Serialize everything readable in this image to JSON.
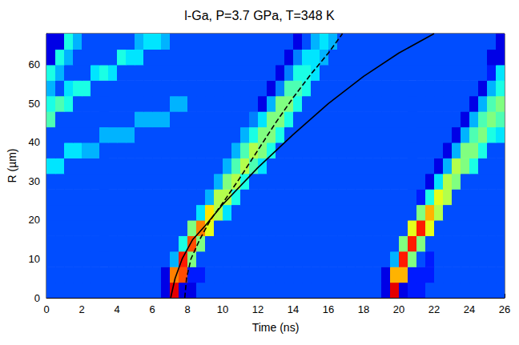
{
  "chart_data": {
    "type": "heatmap",
    "title": "l-Ga, P=3.7 GPa, T=348 K",
    "x_label": "Time (ns)",
    "y_label": "R (µm)",
    "xlim": [
      0,
      26
    ],
    "ylim": [
      0,
      68
    ],
    "xticks": [
      0,
      2,
      4,
      6,
      8,
      10,
      12,
      14,
      16,
      18,
      20,
      22,
      24,
      26
    ],
    "yticks": [
      0,
      10,
      20,
      30,
      40,
      50,
      60
    ],
    "grid": false,
    "x_bins": [
      0,
      0.5,
      1,
      1.5,
      2,
      2.5,
      3,
      3.5,
      4,
      4.5,
      5,
      5.5,
      6,
      6.5,
      7,
      7.5,
      8,
      8.5,
      9,
      9.5,
      10,
      10.5,
      11,
      11.5,
      12,
      12.5,
      13,
      13.5,
      14,
      14.5,
      15,
      15.5,
      16,
      16.5,
      17,
      17.5,
      18,
      18.5,
      19,
      19.5,
      20,
      20.5,
      21,
      21.5,
      22,
      22.5,
      23,
      23.5,
      24,
      24.5,
      25,
      25.5,
      26
    ],
    "y_bins": [
      0,
      4,
      8,
      12,
      16,
      20,
      24,
      28,
      32,
      36,
      40,
      44,
      48,
      52,
      56,
      60,
      64,
      68
    ],
    "color_range": [
      0,
      10
    ],
    "cells": [
      [
        2,
        2,
        2,
        2,
        2,
        2,
        2,
        2,
        2,
        2,
        2,
        2,
        2,
        1,
        9,
        1,
        1,
        2,
        2,
        2,
        2,
        2,
        2,
        2,
        2,
        2,
        2,
        2,
        2,
        2,
        2,
        2,
        2,
        2,
        2,
        2,
        2,
        2,
        1,
        9,
        1,
        1.5,
        1.5,
        2,
        2,
        2,
        2,
        2,
        2,
        2,
        2,
        2
      ],
      [
        2,
        2,
        2,
        2,
        2,
        2,
        2,
        2,
        2,
        2,
        2,
        2,
        2,
        1,
        7.5,
        8,
        1.5,
        1.5,
        2,
        2,
        2,
        2,
        2,
        2,
        2,
        2,
        2,
        2,
        2,
        2,
        2,
        2,
        2,
        2,
        2,
        2,
        2,
        2,
        1,
        7,
        7,
        1.5,
        1.5,
        1.5,
        2,
        2,
        2,
        2,
        2,
        2,
        2,
        2
      ],
      [
        2,
        2,
        2,
        2,
        2,
        2,
        2,
        2,
        2,
        2,
        2,
        2,
        2,
        2,
        3,
        8.5,
        5,
        2,
        2,
        2,
        2,
        2,
        2,
        2,
        2,
        2,
        2,
        2,
        2,
        2,
        2,
        2,
        2,
        2,
        2,
        2,
        2,
        2,
        2,
        3,
        8.5,
        5,
        2,
        1.5,
        2,
        2,
        2,
        2,
        2,
        2,
        2,
        2
      ],
      [
        2,
        2,
        2,
        2,
        2,
        2,
        2,
        2,
        2,
        2,
        2,
        2,
        2,
        2,
        2,
        4,
        8,
        5,
        2,
        2,
        2,
        2,
        2,
        2,
        2,
        2,
        2,
        2,
        2,
        2,
        2,
        2,
        2,
        2,
        2,
        2,
        2,
        2,
        2,
        2,
        5,
        8.5,
        5,
        2,
        2,
        2,
        2,
        2,
        2,
        2,
        2,
        2
      ],
      [
        2,
        2,
        2,
        2,
        2,
        2,
        2,
        2,
        2,
        2,
        2,
        2,
        2,
        2,
        2,
        2,
        5,
        7.5,
        6,
        2,
        2,
        2,
        2,
        2,
        2,
        2,
        2,
        2,
        2,
        2,
        2,
        2,
        2,
        2,
        2,
        2,
        2,
        2,
        2,
        2,
        2,
        6,
        8.5,
        6,
        2,
        2,
        2,
        2,
        2,
        2,
        2,
        2
      ],
      [
        2,
        2,
        2,
        2,
        2,
        2,
        2,
        2,
        2,
        2,
        2,
        2,
        2,
        2,
        2,
        2,
        2,
        3.5,
        6.5,
        5.5,
        3.5,
        2,
        2,
        2,
        2,
        2,
        2,
        2,
        2,
        2,
        2,
        2,
        2,
        2,
        2,
        2,
        2,
        2,
        2,
        2,
        2,
        2,
        5,
        7,
        5.5,
        2,
        2,
        2,
        2,
        2,
        2,
        2
      ],
      [
        2,
        2,
        2,
        2,
        2,
        2,
        2,
        2,
        2,
        2,
        2,
        2,
        2,
        2,
        2,
        2,
        2,
        2,
        3,
        5.5,
        5.5,
        4,
        2,
        2,
        2,
        2,
        2,
        2,
        2,
        2,
        2,
        2,
        2,
        2,
        2,
        2,
        2,
        2,
        2,
        2,
        2,
        2,
        1.5,
        4,
        6,
        5.5,
        2,
        2,
        2,
        2,
        2,
        2
      ],
      [
        2,
        2,
        2,
        2,
        2,
        2,
        2,
        2,
        2,
        2,
        2,
        2,
        2,
        2,
        2,
        2,
        2,
        2,
        2,
        3,
        5,
        5.5,
        4,
        2,
        2,
        2,
        2,
        2,
        2,
        2,
        2,
        2,
        2,
        2,
        2,
        2,
        2,
        2,
        2,
        2,
        2,
        2,
        2,
        1,
        3.5,
        5.5,
        5,
        2,
        2,
        2,
        2,
        2
      ],
      [
        3.5,
        3.5,
        2,
        2,
        2,
        2,
        2,
        2,
        2,
        2,
        2,
        2,
        2,
        2,
        2,
        2,
        2,
        2,
        2,
        2,
        3,
        4.5,
        5.5,
        4.5,
        3.5,
        2,
        2,
        2,
        2,
        2,
        2,
        2,
        2,
        2,
        2,
        2,
        2,
        2,
        2,
        2,
        2,
        2,
        2,
        2,
        1,
        3,
        5.5,
        5,
        4,
        2,
        2,
        2
      ],
      [
        2,
        2,
        3.5,
        3.5,
        3,
        3,
        2,
        2,
        2,
        2,
        2,
        2,
        2,
        2,
        2,
        2,
        2,
        2,
        2,
        2,
        2,
        3,
        4.5,
        5.5,
        5,
        4,
        2,
        2,
        2,
        2,
        2,
        2,
        2,
        2,
        2,
        2,
        2,
        2,
        2,
        2,
        2,
        2,
        2,
        2,
        2,
        1,
        3,
        5,
        5,
        4,
        2,
        2
      ],
      [
        2,
        2,
        2,
        2,
        2,
        2,
        3,
        3,
        3,
        3,
        2,
        2,
        2,
        2,
        2,
        2,
        2,
        2,
        2,
        2,
        2,
        2,
        3,
        4,
        5,
        5,
        4,
        2,
        2,
        2,
        2,
        2,
        2,
        2,
        2,
        2,
        2,
        2,
        2,
        2,
        2,
        2,
        2,
        2,
        2,
        2,
        1,
        3,
        4.5,
        5,
        4,
        3.5
      ],
      [
        4.5,
        2,
        2,
        2,
        2,
        2,
        2,
        2,
        2,
        2,
        3,
        3,
        3,
        3,
        2,
        2,
        2,
        2,
        2,
        2,
        2,
        2,
        2,
        2.5,
        3.5,
        5,
        5,
        4,
        2,
        2,
        2,
        2,
        2,
        2,
        2,
        2,
        2,
        2,
        2,
        2,
        2,
        2,
        2,
        2,
        2,
        2,
        2,
        1,
        3,
        4.5,
        5,
        4.5
      ],
      [
        4,
        4.5,
        4,
        2,
        2,
        2,
        2,
        2,
        2,
        2,
        2,
        2,
        2,
        2,
        3,
        3,
        2,
        2,
        2,
        2,
        2,
        2,
        2,
        2,
        1,
        3,
        5,
        5,
        4,
        2,
        2,
        2,
        2,
        2,
        2,
        2,
        2,
        2,
        2,
        2,
        2,
        2,
        2,
        2,
        2,
        2,
        2,
        2,
        1,
        3,
        4.5,
        5
      ],
      [
        3,
        2,
        3.5,
        4,
        4,
        2,
        2,
        2,
        2,
        2,
        2,
        2,
        2,
        2,
        2,
        2,
        2,
        2,
        2,
        2,
        2,
        2,
        2,
        2,
        2,
        1,
        2.5,
        4.5,
        4.5,
        4,
        2,
        2,
        2,
        2,
        2,
        2,
        2,
        2,
        2,
        2,
        2,
        2,
        2,
        2,
        2,
        2,
        2,
        2,
        2,
        1,
        3,
        4
      ],
      [
        4,
        3,
        2,
        2,
        2,
        3.5,
        4,
        3.5,
        2,
        2,
        2,
        2,
        2,
        2,
        2,
        2,
        2,
        2,
        2,
        2,
        2,
        2,
        2,
        2,
        2,
        2,
        1,
        2.5,
        4,
        4,
        3.5,
        2,
        2,
        2,
        2,
        2,
        2,
        2,
        2,
        2,
        2,
        2,
        2,
        2,
        2,
        2,
        2,
        2,
        2,
        2,
        1.5,
        3.5
      ],
      [
        1,
        4,
        3,
        2,
        2,
        2,
        2,
        2,
        4,
        3.5,
        3.5,
        2,
        2,
        2,
        2,
        2,
        2,
        2,
        2,
        2,
        2,
        2,
        2,
        2,
        2,
        2,
        2,
        1,
        2.5,
        3.5,
        3.5,
        3,
        2,
        2,
        2,
        2,
        2,
        2,
        2,
        2,
        2,
        2,
        2,
        2,
        2,
        2,
        2,
        2,
        2,
        2,
        1,
        1
      ],
      [
        1,
        1,
        4,
        3,
        2,
        2,
        2,
        2,
        2,
        2,
        3,
        3.5,
        3.5,
        3,
        2,
        2,
        2,
        2,
        2,
        2,
        2,
        2,
        2,
        2,
        2,
        2,
        2,
        2,
        1,
        2,
        3,
        3.5,
        3,
        2,
        2,
        2,
        2,
        2,
        2,
        2,
        2,
        2,
        2,
        2,
        2,
        2,
        2,
        2,
        2,
        2,
        2,
        1
      ]
    ],
    "series": [
      {
        "type": "line",
        "color": "#000000",
        "line_style": "solid",
        "x": [
          7.05,
          7.3,
          7.7,
          8.3,
          9,
          10,
          12,
          14,
          16,
          18,
          20,
          22
        ],
        "values": [
          0,
          5,
          10,
          15,
          18.5,
          24,
          33.5,
          42,
          50,
          57,
          63,
          68
        ]
      },
      {
        "type": "line",
        "color": "#000000",
        "line_style": "dashed",
        "x": [
          7.85,
          7.95,
          8.2,
          8.7,
          9.3,
          10.1,
          11,
          12,
          13,
          14,
          15,
          16,
          16.8
        ],
        "values": [
          0,
          5,
          10,
          15,
          20,
          25,
          31,
          38,
          45,
          51.5,
          57.5,
          63,
          68
        ]
      }
    ]
  }
}
